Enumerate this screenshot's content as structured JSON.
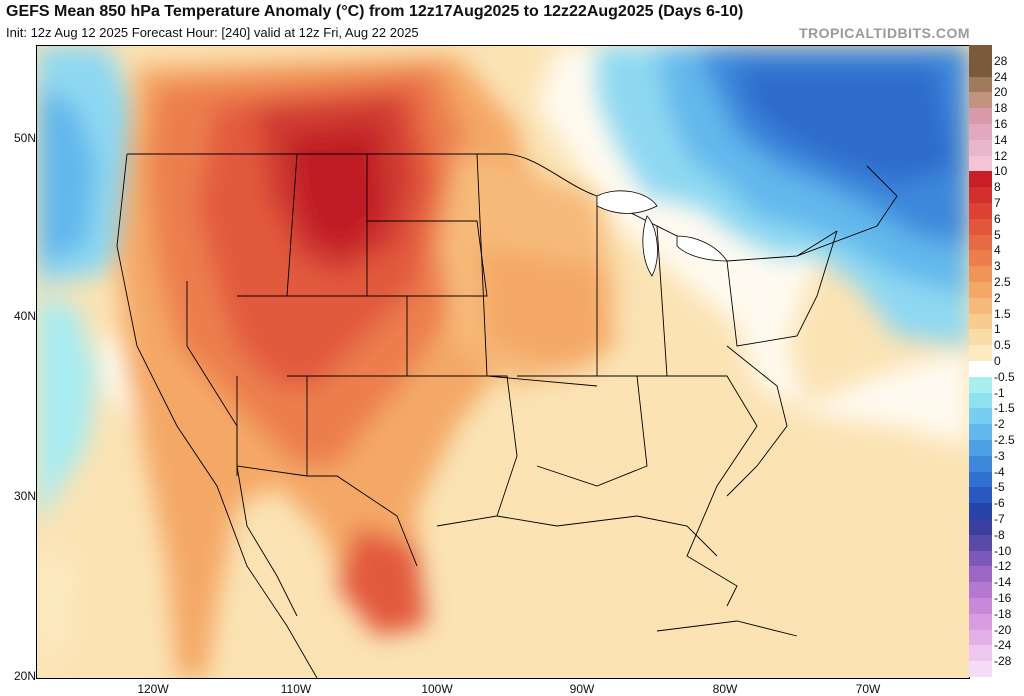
{
  "header": {
    "title": "GEFS Mean 850 hPa Temperature Anomaly (°C) from 12z17Aug2025 to 12z22Aug2025 (Days 6-10)",
    "subtitle": "Init: 12z Aug 12 2025   Forecast Hour: [240]   valid at 12z Fri, Aug 22 2025",
    "brand": "TROPICALTIDBITS.COM"
  },
  "axes": {
    "lat_labels": [
      "50N",
      "40N",
      "30N",
      "20N"
    ],
    "lon_labels": [
      "120W",
      "110W",
      "100W",
      "90W",
      "80W",
      "70W"
    ]
  },
  "colorbar": {
    "labels": [
      "28",
      "24",
      "20",
      "18",
      "16",
      "14",
      "12",
      "10",
      "8",
      "7",
      "6",
      "5",
      "4",
      "3",
      "2.5",
      "2",
      "1.5",
      "1",
      "0.5",
      "0",
      "-0.5",
      "-1",
      "-1.5",
      "-2",
      "-2.5",
      "-3",
      "-4",
      "-5",
      "-6",
      "-7",
      "-8",
      "-10",
      "-12",
      "-14",
      "-16",
      "-18",
      "-20",
      "-24",
      "-28"
    ],
    "colors": [
      "#7a5a3a",
      "#a07a5a",
      "#c29480",
      "#d89aa8",
      "#e2a8c0",
      "#eab6cc",
      "#f2c4d6",
      "#c81e28",
      "#d2302c",
      "#dc4234",
      "#e2563c",
      "#e66a44",
      "#ec7e4e",
      "#f09458",
      "#f4a866",
      "#f6ba7a",
      "#f8cc8e",
      "#fadca6",
      "#fceac0",
      "#ffffff",
      "#a8f0f0",
      "#8ee2f0",
      "#78cef0",
      "#62b8ec",
      "#4ea0e4",
      "#3e88dc",
      "#3070d0",
      "#2858c0",
      "#2444a8",
      "#3a3e9e",
      "#5a4aa8",
      "#7c58b8",
      "#9a68c4",
      "#b478d0",
      "#c88ad8",
      "#d89ce0",
      "#e4b0e8",
      "#eec6f0",
      "#f6dcf6"
    ]
  },
  "colors": {
    "background_map": "#fbd8a0",
    "ocean_neutral": "#fceac0",
    "warm_core": "#c81e28",
    "cool_core": "#2e6fd0"
  }
}
